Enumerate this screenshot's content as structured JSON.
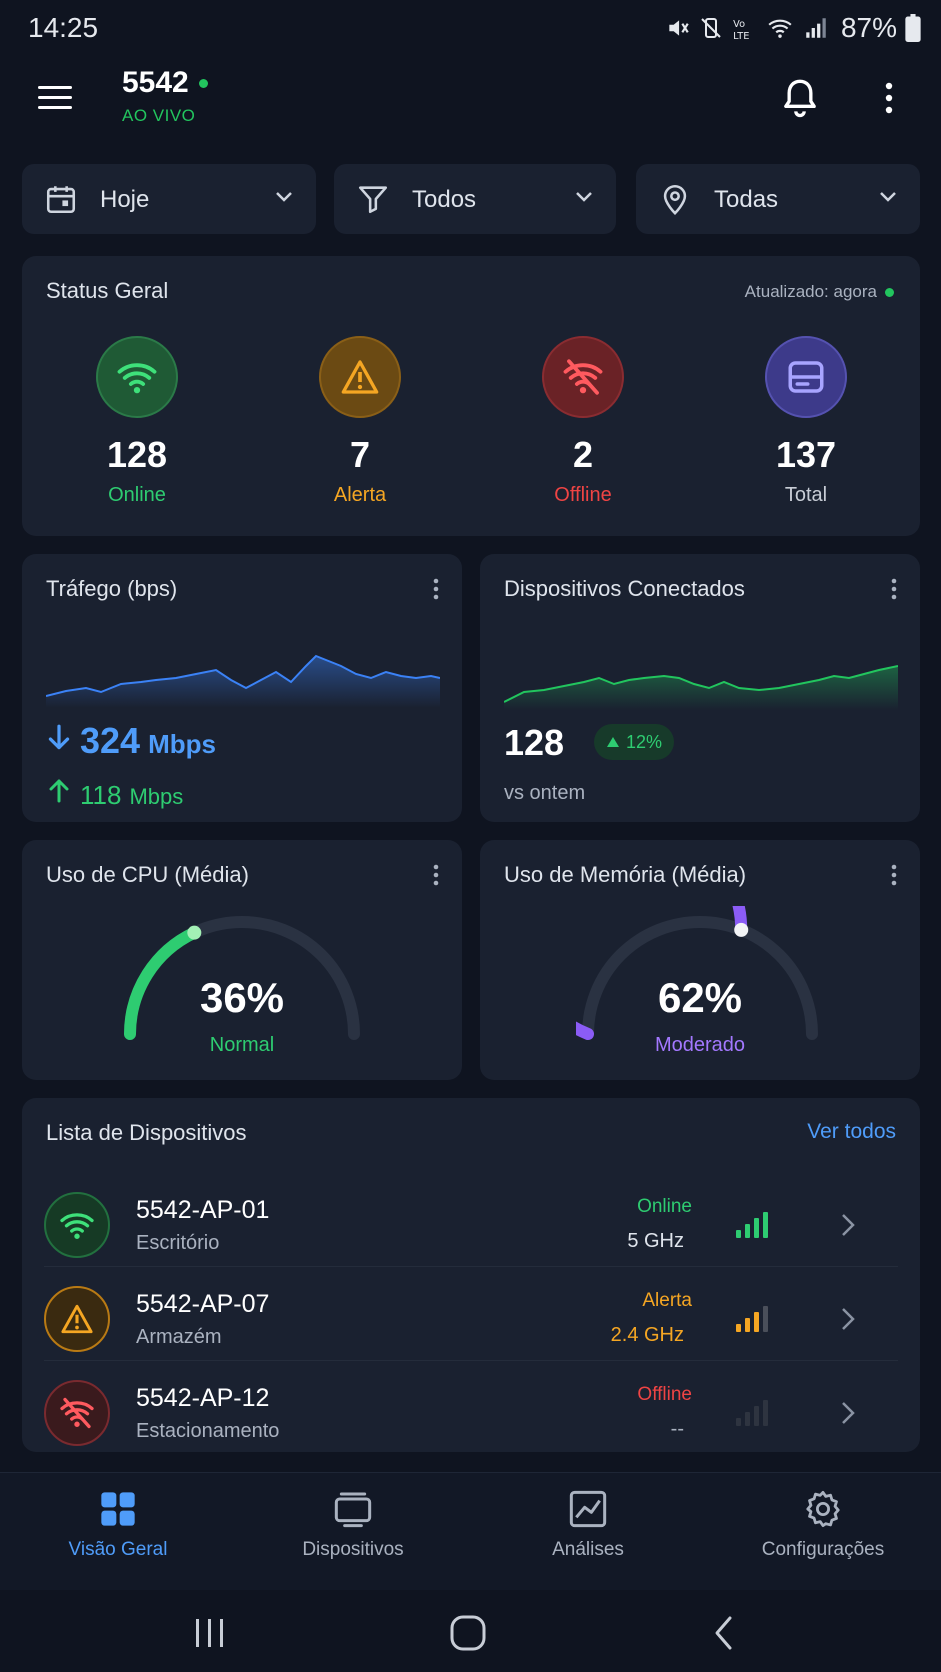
{
  "status_bar": {
    "time": "14:25",
    "battery_percent": "87%",
    "icons": [
      "mute-icon",
      "vibrate-off-icon",
      "volte-icon",
      "wifi-icon",
      "signal-icon",
      "battery-icon"
    ]
  },
  "header": {
    "title": "5542",
    "live_label": "AO VIVO",
    "accent": "#22c55e"
  },
  "filters": [
    {
      "label": "Hoje",
      "icon": "calendar-icon"
    },
    {
      "label": "Todos",
      "icon": "filter-icon"
    },
    {
      "label": "Todas",
      "icon": "location-pin-icon"
    }
  ],
  "status_geral": {
    "title": "Status Geral",
    "updated": "Atualizado: agora",
    "stats": [
      {
        "value": "128",
        "label": "Online",
        "color": "#2ecc71",
        "icon": "wifi-icon"
      },
      {
        "value": "7",
        "label": "Alerta",
        "color": "#f5a623",
        "icon": "warning-icon"
      },
      {
        "value": "2",
        "label": "Offline",
        "color": "#ef4444",
        "icon": "wifi-off-icon"
      },
      {
        "value": "137",
        "label": "Total",
        "color": "#c8cdd6",
        "icon": "router-icon"
      }
    ]
  },
  "traffic": {
    "title": "Tráfego (bps)",
    "download_value": "324",
    "download_unit": "Mbps",
    "upload_value": "118",
    "upload_unit": "Mbps"
  },
  "connected": {
    "title": "Dispositivos Conectados",
    "count": "128",
    "trend": "12%",
    "comparison": "vs ontem"
  },
  "cpu": {
    "title": "Uso de CPU (Média)",
    "value": "36%",
    "level": 0.36,
    "status": "Normal",
    "color": "#2ecc71"
  },
  "memory": {
    "title": "Uso de Memória (Média)",
    "value": "62%",
    "level": 0.62,
    "status": "Moderado",
    "color": "#8b5cf6"
  },
  "device_list": {
    "title": "Lista de Dispositivos",
    "see_all": "Ver todos",
    "devices": [
      {
        "name": "5542-AP-01",
        "location": "Escritório",
        "status": "Online",
        "band": "5 GHz",
        "status_color": "#2ecc71",
        "band_color": "#dfe4ec",
        "signal_bars": 4
      },
      {
        "name": "5542-AP-07",
        "location": "Armazém",
        "status": "Alerta",
        "band": "2.4 GHz",
        "status_color": "#f5a623",
        "band_color": "#f5a623",
        "signal_bars": 3
      },
      {
        "name": "5542-AP-12",
        "location": "Estacionamento",
        "status": "Offline",
        "band": "--",
        "status_color": "#ef4444",
        "band_color": "#aab2c0",
        "signal_bars": 0
      }
    ]
  },
  "bottom_nav": {
    "items": [
      {
        "label": "Visão Geral",
        "icon": "grid-icon",
        "active": true
      },
      {
        "label": "Dispositivos",
        "icon": "devices-icon",
        "active": false
      },
      {
        "label": "Análises",
        "icon": "analytics-icon",
        "active": false
      },
      {
        "label": "Configurações",
        "icon": "gear-icon",
        "active": false
      }
    ]
  }
}
